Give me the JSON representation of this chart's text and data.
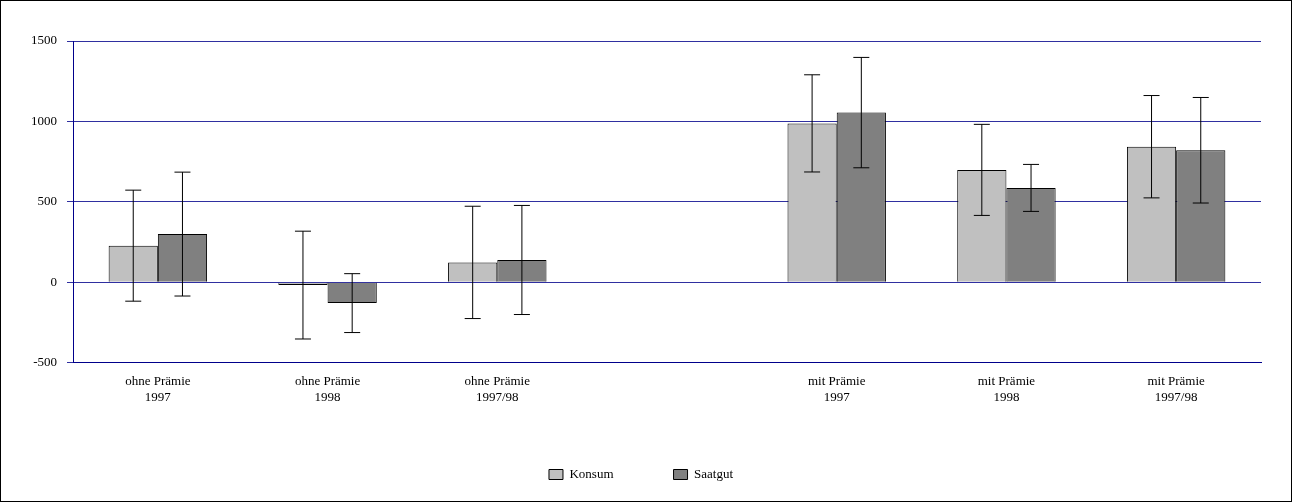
{
  "chart_data": {
    "type": "bar",
    "categories": [
      "ohne Prämie\n1997",
      "ohne Prämie\n1998",
      "ohne Prämie\n1997/98",
      null,
      "mit Prämie\n1997",
      "mit Prämie\n1998",
      "mit Prämie\n1997/98"
    ],
    "series": [
      {
        "name": "Konsum",
        "color": "#c0c0c0",
        "values": [
          228,
          -17,
          124,
          null,
          988,
          699,
          843
        ],
        "errors": [
          345,
          335,
          349,
          null,
          302,
          283,
          318
        ]
      },
      {
        "name": "Saatgut",
        "color": "#808080",
        "values": [
          300,
          -129,
          139,
          null,
          1055,
          587,
          821
        ],
        "errors": [
          385,
          183,
          339,
          null,
          343,
          146,
          328
        ]
      }
    ],
    "ylim": [
      -500,
      1500
    ],
    "yticks": [
      -500,
      0,
      500,
      1000,
      1500
    ],
    "grid": "y",
    "legend": "bottom"
  }
}
